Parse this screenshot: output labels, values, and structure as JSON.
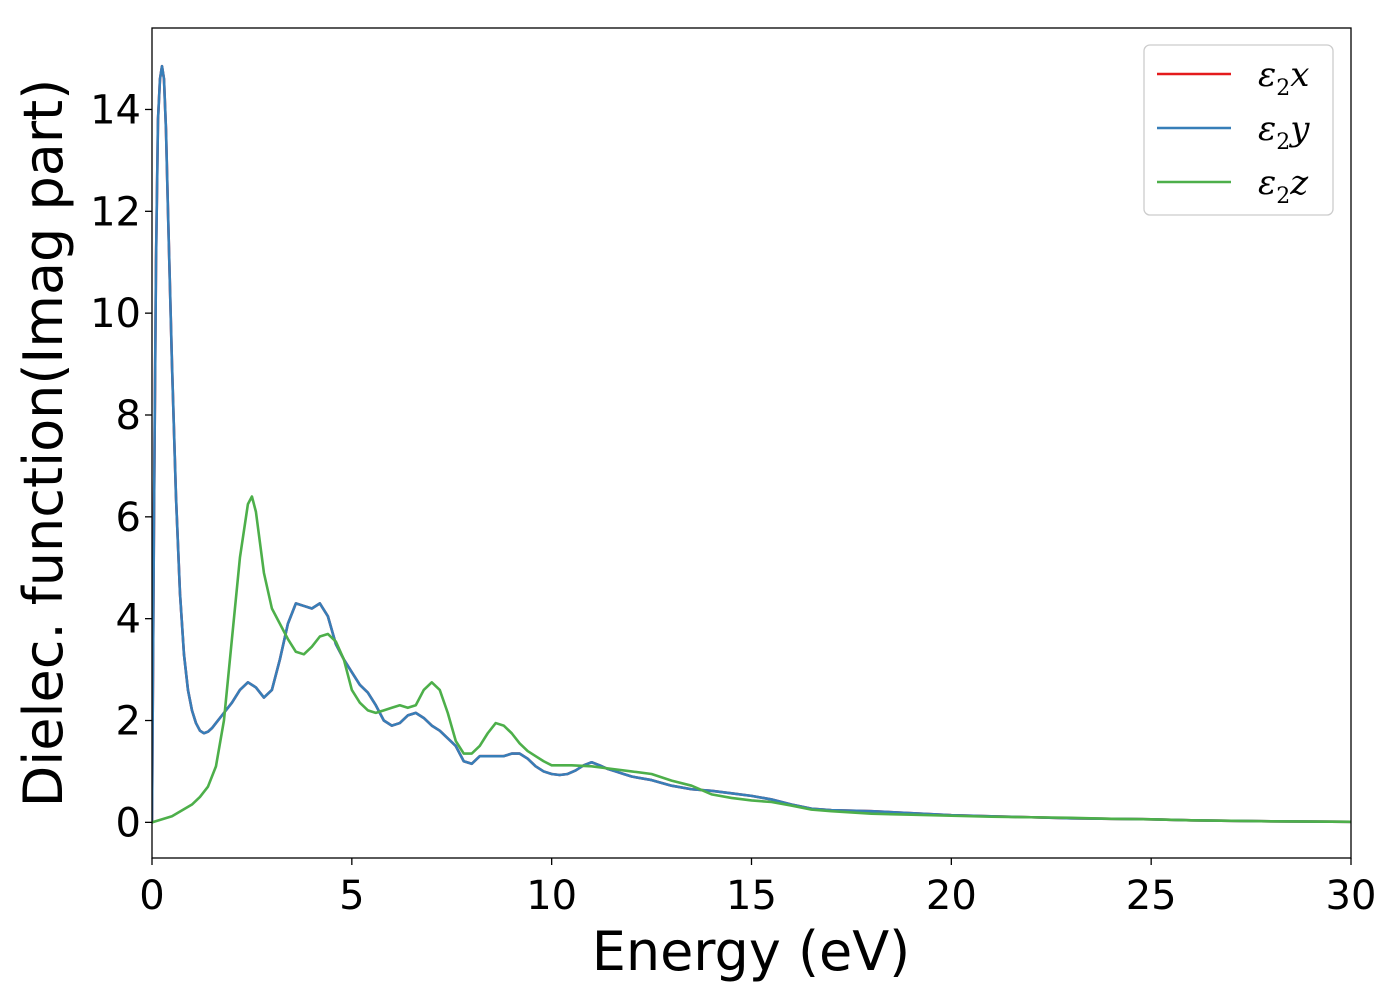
{
  "chart_data": {
    "type": "line",
    "title": "",
    "xlabel": "Energy (eV)",
    "ylabel": "Dielec. function(Imag part)",
    "xlim": [
      0,
      30
    ],
    "ylim": [
      -0.7,
      15.6
    ],
    "xticks": [
      0,
      5,
      10,
      15,
      20,
      25,
      30
    ],
    "yticks": [
      0,
      2,
      4,
      6,
      8,
      10,
      12,
      14
    ],
    "grid": false,
    "legend_position": "top-right",
    "series": [
      {
        "name": "x",
        "color": "#e41a1c",
        "x": [
          0,
          0.05,
          0.1,
          0.15,
          0.2,
          0.25,
          0.3,
          0.35,
          0.4,
          0.5,
          0.6,
          0.7,
          0.8,
          0.9,
          1.0,
          1.1,
          1.2,
          1.3,
          1.4,
          1.5,
          1.6,
          1.8,
          2.0,
          2.2,
          2.4,
          2.6,
          2.8,
          3.0,
          3.2,
          3.4,
          3.6,
          3.8,
          4.0,
          4.2,
          4.4,
          4.6,
          4.8,
          5.0,
          5.2,
          5.4,
          5.6,
          5.8,
          6.0,
          6.2,
          6.4,
          6.6,
          6.8,
          7.0,
          7.2,
          7.4,
          7.6,
          7.8,
          8.0,
          8.2,
          8.4,
          8.6,
          8.8,
          9.0,
          9.2,
          9.4,
          9.6,
          9.8,
          10.0,
          10.2,
          10.4,
          10.6,
          10.8,
          11.0,
          11.2,
          11.4,
          11.6,
          11.8,
          12.0,
          12.5,
          13.0,
          13.5,
          14.0,
          14.5,
          15.0,
          15.5,
          16.0,
          16.5,
          17.0,
          18.0,
          19.0,
          20.0,
          21.0,
          22.0,
          23.0,
          24.0,
          25.0,
          26.0,
          27.0,
          28.0,
          29.0,
          30.0
        ],
        "values": [
          0,
          6.0,
          11.0,
          13.8,
          14.6,
          14.85,
          14.6,
          13.6,
          12.0,
          9.0,
          6.4,
          4.5,
          3.3,
          2.6,
          2.2,
          1.95,
          1.8,
          1.75,
          1.78,
          1.85,
          1.95,
          2.15,
          2.35,
          2.6,
          2.75,
          2.65,
          2.45,
          2.6,
          3.2,
          3.9,
          4.3,
          4.25,
          4.2,
          4.3,
          4.05,
          3.5,
          3.2,
          2.95,
          2.7,
          2.55,
          2.3,
          2.0,
          1.9,
          1.95,
          2.1,
          2.15,
          2.05,
          1.9,
          1.8,
          1.65,
          1.5,
          1.2,
          1.15,
          1.3,
          1.3,
          1.3,
          1.3,
          1.35,
          1.35,
          1.25,
          1.1,
          1.0,
          0.95,
          0.93,
          0.95,
          1.02,
          1.12,
          1.18,
          1.12,
          1.05,
          1.0,
          0.95,
          0.9,
          0.83,
          0.72,
          0.65,
          0.62,
          0.57,
          0.52,
          0.45,
          0.35,
          0.27,
          0.24,
          0.22,
          0.18,
          0.14,
          0.12,
          0.1,
          0.08,
          0.07,
          0.06,
          0.04,
          0.03,
          0.02,
          0.015,
          0.01
        ]
      },
      {
        "name": "y",
        "color": "#377eb8",
        "x": [
          0,
          0.05,
          0.1,
          0.15,
          0.2,
          0.25,
          0.3,
          0.35,
          0.4,
          0.5,
          0.6,
          0.7,
          0.8,
          0.9,
          1.0,
          1.1,
          1.2,
          1.3,
          1.4,
          1.5,
          1.6,
          1.8,
          2.0,
          2.2,
          2.4,
          2.6,
          2.8,
          3.0,
          3.2,
          3.4,
          3.6,
          3.8,
          4.0,
          4.2,
          4.4,
          4.6,
          4.8,
          5.0,
          5.2,
          5.4,
          5.6,
          5.8,
          6.0,
          6.2,
          6.4,
          6.6,
          6.8,
          7.0,
          7.2,
          7.4,
          7.6,
          7.8,
          8.0,
          8.2,
          8.4,
          8.6,
          8.8,
          9.0,
          9.2,
          9.4,
          9.6,
          9.8,
          10.0,
          10.2,
          10.4,
          10.6,
          10.8,
          11.0,
          11.2,
          11.4,
          11.6,
          11.8,
          12.0,
          12.5,
          13.0,
          13.5,
          14.0,
          14.5,
          15.0,
          15.5,
          16.0,
          16.5,
          17.0,
          18.0,
          19.0,
          20.0,
          21.0,
          22.0,
          23.0,
          24.0,
          25.0,
          26.0,
          27.0,
          28.0,
          29.0,
          30.0
        ],
        "values": [
          0,
          6.0,
          11.0,
          13.8,
          14.6,
          14.85,
          14.6,
          13.6,
          12.0,
          9.0,
          6.4,
          4.5,
          3.3,
          2.6,
          2.2,
          1.95,
          1.8,
          1.75,
          1.78,
          1.85,
          1.95,
          2.15,
          2.35,
          2.6,
          2.75,
          2.65,
          2.45,
          2.6,
          3.2,
          3.9,
          4.3,
          4.25,
          4.2,
          4.3,
          4.05,
          3.5,
          3.2,
          2.95,
          2.7,
          2.55,
          2.3,
          2.0,
          1.9,
          1.95,
          2.1,
          2.15,
          2.05,
          1.9,
          1.8,
          1.65,
          1.5,
          1.2,
          1.15,
          1.3,
          1.3,
          1.3,
          1.3,
          1.35,
          1.35,
          1.25,
          1.1,
          1.0,
          0.95,
          0.93,
          0.95,
          1.02,
          1.12,
          1.18,
          1.12,
          1.05,
          1.0,
          0.95,
          0.9,
          0.83,
          0.72,
          0.65,
          0.62,
          0.57,
          0.52,
          0.45,
          0.35,
          0.27,
          0.24,
          0.22,
          0.18,
          0.14,
          0.12,
          0.1,
          0.08,
          0.07,
          0.06,
          0.04,
          0.03,
          0.02,
          0.015,
          0.01
        ]
      },
      {
        "name": "z",
        "color": "#4daf4a",
        "x": [
          0,
          0.5,
          1.0,
          1.2,
          1.4,
          1.6,
          1.8,
          2.0,
          2.2,
          2.4,
          2.5,
          2.6,
          2.8,
          3.0,
          3.2,
          3.4,
          3.6,
          3.8,
          4.0,
          4.2,
          4.4,
          4.6,
          4.8,
          5.0,
          5.2,
          5.4,
          5.6,
          5.8,
          6.0,
          6.2,
          6.4,
          6.6,
          6.8,
          7.0,
          7.2,
          7.4,
          7.6,
          7.8,
          8.0,
          8.2,
          8.4,
          8.6,
          8.8,
          9.0,
          9.2,
          9.4,
          9.6,
          9.8,
          10.0,
          10.5,
          11.0,
          11.5,
          12.0,
          12.5,
          13.0,
          13.5,
          14.0,
          14.5,
          15.0,
          15.5,
          16.0,
          16.5,
          17.0,
          18.0,
          19.0,
          20.0,
          21.0,
          22.0,
          23.0,
          24.0,
          25.0,
          26.0,
          27.0,
          28.0,
          29.0,
          30.0
        ],
        "values": [
          0.0,
          0.12,
          0.35,
          0.5,
          0.7,
          1.1,
          2.0,
          3.6,
          5.2,
          6.25,
          6.4,
          6.1,
          4.9,
          4.2,
          3.9,
          3.6,
          3.35,
          3.3,
          3.45,
          3.65,
          3.7,
          3.55,
          3.2,
          2.6,
          2.35,
          2.2,
          2.15,
          2.2,
          2.25,
          2.3,
          2.25,
          2.3,
          2.6,
          2.75,
          2.6,
          2.15,
          1.6,
          1.35,
          1.35,
          1.5,
          1.75,
          1.95,
          1.9,
          1.75,
          1.55,
          1.4,
          1.3,
          1.2,
          1.12,
          1.12,
          1.1,
          1.05,
          1.0,
          0.95,
          0.82,
          0.72,
          0.55,
          0.48,
          0.43,
          0.4,
          0.33,
          0.25,
          0.22,
          0.17,
          0.15,
          0.13,
          0.11,
          0.1,
          0.09,
          0.07,
          0.06,
          0.04,
          0.03,
          0.02,
          0.015,
          0.01
        ]
      }
    ]
  }
}
